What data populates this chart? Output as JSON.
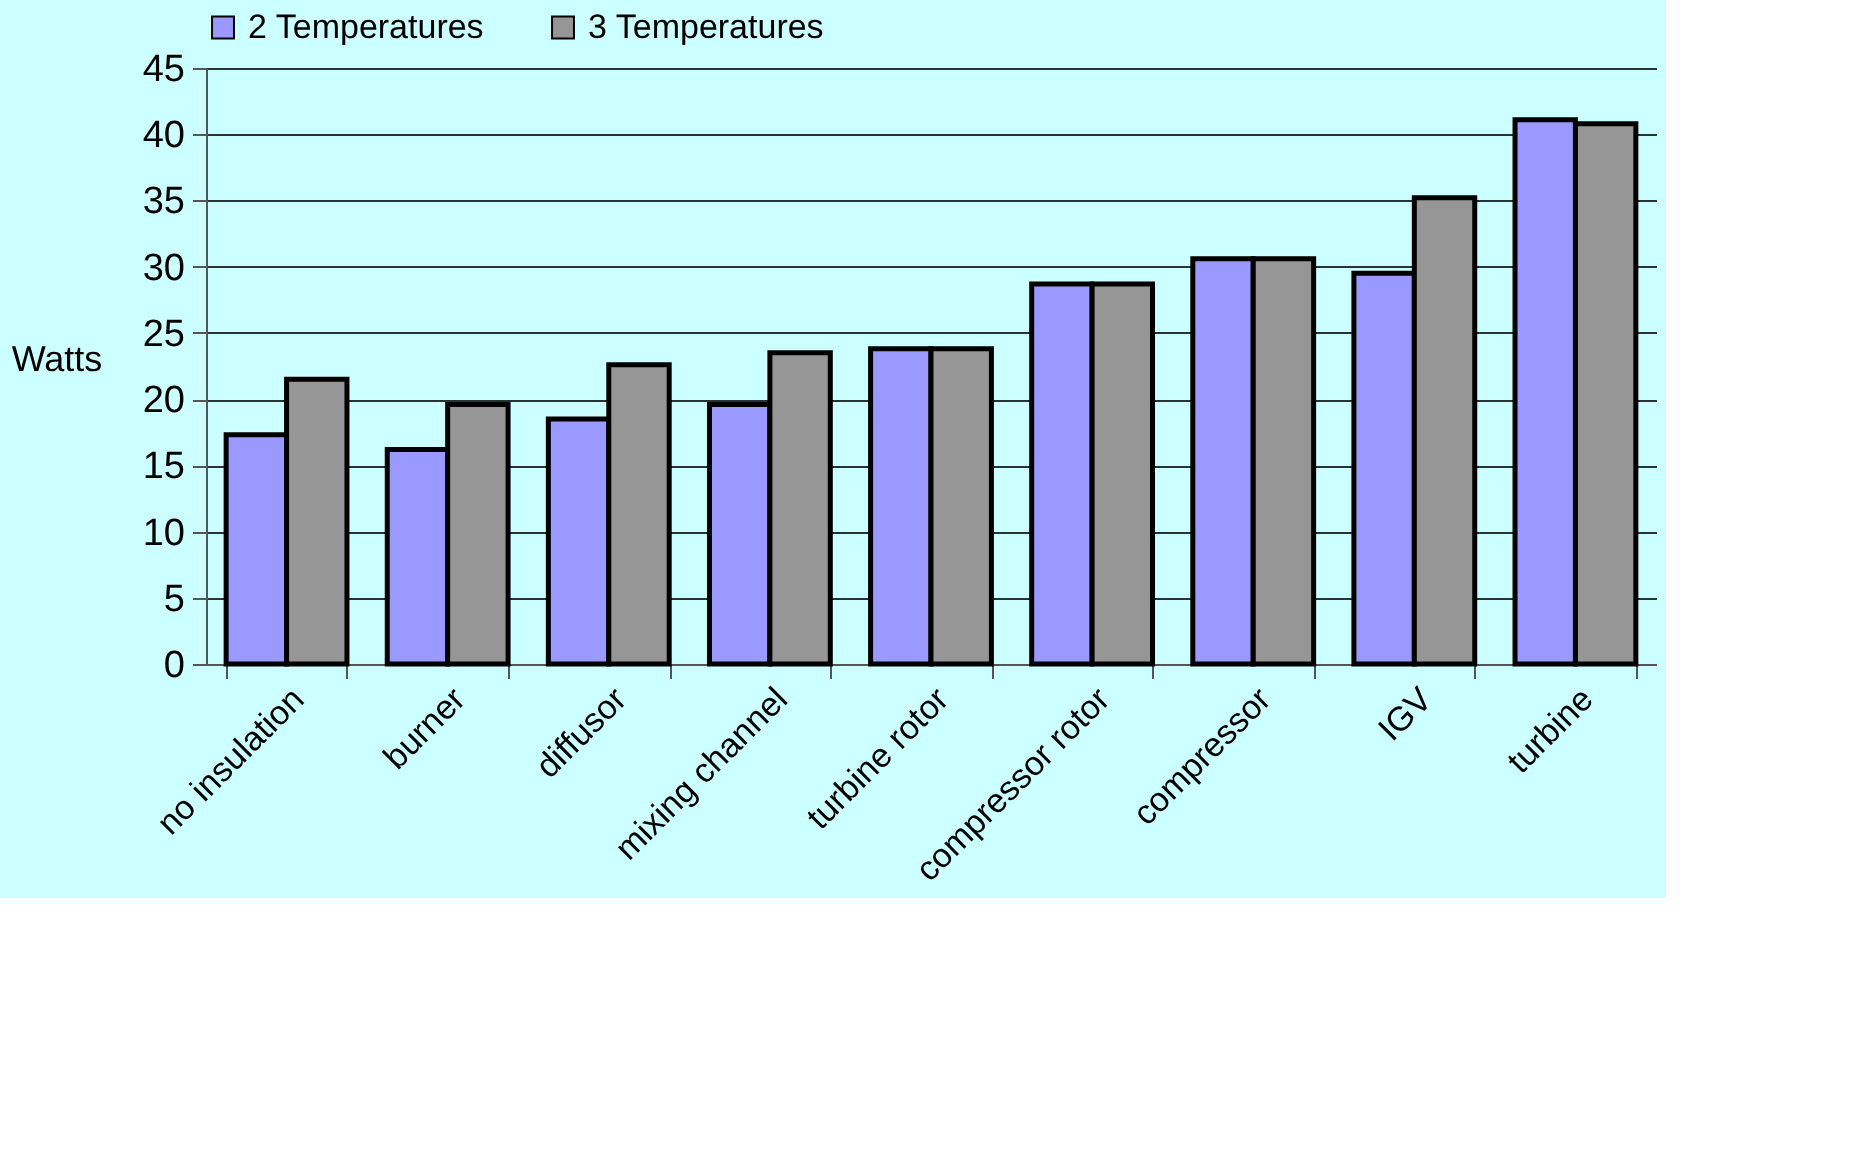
{
  "chart_data": {
    "type": "bar",
    "ylabel": "Watts",
    "categories": [
      "no insulation",
      "burner",
      "diffusor",
      "mixing channel",
      "turbine rotor",
      "compressor rotor",
      "compressor",
      "IGV",
      "turbine"
    ],
    "series": [
      {
        "name": "2 Temperatures",
        "color": "#9999ff",
        "values": [
          17.3,
          16.2,
          18.5,
          19.6,
          23.8,
          28.7,
          30.6,
          29.5,
          41.1
        ]
      },
      {
        "name": "3 Temperatures",
        "color": "#969696",
        "values": [
          21.5,
          19.6,
          22.6,
          23.5,
          23.8,
          28.7,
          30.6,
          35.2,
          40.8
        ]
      }
    ],
    "ylim": [
      0,
      45
    ],
    "yticks": [
      0,
      5,
      10,
      15,
      20,
      25,
      30,
      35,
      40,
      45
    ],
    "grid": "y",
    "legend": "top"
  }
}
